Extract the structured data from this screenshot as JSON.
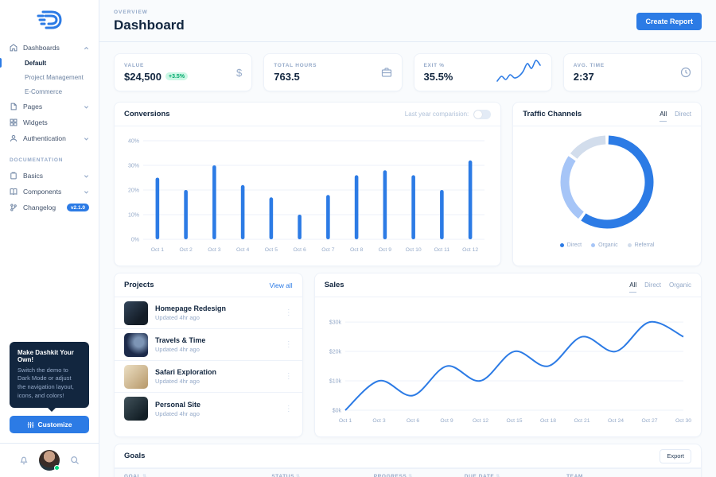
{
  "colors": {
    "primary": "#2c7be5",
    "muted": "#95aac9",
    "dark": "#12263f",
    "success_bg": "#ccf7e5",
    "success_text": "#00a86b",
    "grid": "#edf2f9"
  },
  "sidebar": {
    "nav": [
      {
        "label": "Dashboards",
        "icon": "home-icon",
        "chevron": "up",
        "children": [
          {
            "label": "Default",
            "active": true
          },
          {
            "label": "Project Management",
            "active": false
          },
          {
            "label": "E-Commerce",
            "active": false
          }
        ]
      },
      {
        "label": "Pages",
        "icon": "file-icon",
        "chevron": "down"
      },
      {
        "label": "Widgets",
        "icon": "grid-icon",
        "chevron": ""
      },
      {
        "label": "Authentication",
        "icon": "user-icon",
        "chevron": "down"
      }
    ],
    "section_label": "DOCUMENTATION",
    "docs": [
      {
        "label": "Basics",
        "icon": "clipboard-icon",
        "chevron": "down"
      },
      {
        "label": "Components",
        "icon": "book-icon",
        "chevron": "down"
      },
      {
        "label": "Changelog",
        "icon": "git-branch-icon",
        "badge": "v2.1.0"
      }
    ],
    "promo": {
      "title": "Make Dashkit Your Own!",
      "body": "Switch the demo to Dark Mode or adjust the navigation layout, icons, and colors!",
      "button": "Customize"
    }
  },
  "header": {
    "pretitle": "OVERVIEW",
    "title": "Dashboard",
    "action": "Create Report"
  },
  "stats": [
    {
      "label": "VALUE",
      "value": "$24,500",
      "badge": "+3.5%",
      "icon": "dollar-icon"
    },
    {
      "label": "TOTAL HOURS",
      "value": "763.5",
      "icon": "briefcase-icon"
    },
    {
      "label": "EXIT %",
      "value": "35.5%",
      "icon": "sparkline-chart"
    },
    {
      "label": "AVG. TIME",
      "value": "2:37",
      "icon": "clock-icon"
    }
  ],
  "conversions": {
    "title": "Conversions",
    "toggle_label": "Last year comparision:"
  },
  "traffic": {
    "title": "Traffic Channels",
    "tabs": [
      "All",
      "Direct"
    ],
    "legend": [
      {
        "label": "Direct"
      },
      {
        "label": "Organic"
      },
      {
        "label": "Referral"
      }
    ]
  },
  "projects": {
    "title": "Projects",
    "view_all": "View all",
    "items": [
      {
        "name": "Homepage Redesign",
        "meta": "Updated 4hr ago"
      },
      {
        "name": "Travels & Time",
        "meta": "Updated 4hr ago"
      },
      {
        "name": "Safari Exploration",
        "meta": "Updated 4hr ago"
      },
      {
        "name": "Personal Site",
        "meta": "Updated 4hr ago"
      }
    ]
  },
  "sales": {
    "title": "Sales",
    "tabs": [
      "All",
      "Direct",
      "Organic"
    ]
  },
  "goals": {
    "title": "Goals",
    "export_label": "Export",
    "columns": [
      "GOAL",
      "STATUS",
      "PROGRESS",
      "DUE DATE",
      "TEAM"
    ],
    "sortable": [
      true,
      true,
      true,
      true,
      false
    ]
  },
  "chart_data": [
    {
      "type": "bar",
      "title": "Conversions",
      "categories": [
        "Oct 1",
        "Oct 2",
        "Oct 3",
        "Oct 4",
        "Oct 5",
        "Oct 6",
        "Oct 7",
        "Oct 8",
        "Oct 9",
        "Oct 10",
        "Oct 11",
        "Oct 12"
      ],
      "values": [
        25,
        20,
        30,
        22,
        17,
        10,
        18,
        26,
        28,
        26,
        20,
        32
      ],
      "ylim": [
        0,
        40
      ],
      "yticks": [
        0,
        10,
        20,
        30,
        40
      ],
      "ytick_labels": [
        "0%",
        "10%",
        "20%",
        "30%",
        "40%"
      ],
      "color": "#2c7be5",
      "grid": true,
      "xlabel": "",
      "ylabel": ""
    },
    {
      "type": "pie",
      "title": "Traffic Channels",
      "labels": [
        "Direct",
        "Organic",
        "Referral"
      ],
      "values": [
        60,
        25,
        15
      ],
      "colors": [
        "#2c7be5",
        "#a6c5f7",
        "#d2ddec"
      ],
      "donut": true,
      "legend_position": "bottom"
    },
    {
      "type": "line",
      "title": "Sales",
      "categories": [
        "Oct 1",
        "Oct 3",
        "Oct 6",
        "Oct 9",
        "Oct 12",
        "Oct 15",
        "Oct 18",
        "Oct 21",
        "Oct 24",
        "Oct 27",
        "Oct 30"
      ],
      "values": [
        0,
        10,
        5,
        15,
        10,
        20,
        15,
        25,
        20,
        30,
        25
      ],
      "ylim": [
        0,
        33
      ],
      "yticks": [
        0,
        10,
        20,
        30
      ],
      "ytick_labels": [
        "$0k",
        "$10k",
        "$20k",
        "$30k"
      ],
      "color": "#2c7be5",
      "grid": true,
      "smooth": true,
      "xlabel": "",
      "ylabel": ""
    },
    {
      "type": "line",
      "title": "Exit % sparkline",
      "values": [
        2,
        5,
        3,
        6,
        4,
        5,
        8,
        13,
        10,
        15,
        12
      ],
      "color": "#2c7be5",
      "grid": false,
      "smooth": true
    }
  ]
}
